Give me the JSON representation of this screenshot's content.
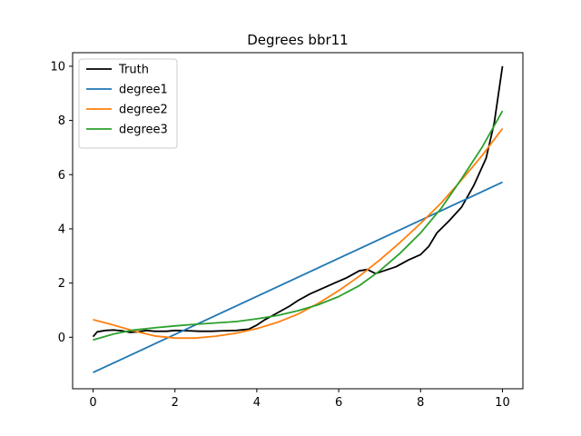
{
  "chart_data": {
    "type": "line",
    "title": "Degrees bbr11",
    "xlabel": "",
    "ylabel": "",
    "xlim": [
      -0.5,
      10.5
    ],
    "ylim": [
      -1.9,
      10.5
    ],
    "xticks": [
      0,
      2,
      4,
      6,
      8,
      10
    ],
    "yticks": [
      0,
      2,
      4,
      6,
      8,
      10
    ],
    "grid": false,
    "legend_position": "top-left",
    "series": [
      {
        "name": "Truth",
        "color": "#000000",
        "x": [
          0,
          0.1,
          0.3,
          0.5,
          0.7,
          0.9,
          1.1,
          1.3,
          1.5,
          1.8,
          2.0,
          2.3,
          2.6,
          2.9,
          3.2,
          3.5,
          3.8,
          4.0,
          4.2,
          4.5,
          4.8,
          5.0,
          5.3,
          5.6,
          5.9,
          6.2,
          6.5,
          6.7,
          6.9,
          7.1,
          7.4,
          7.7,
          8.0,
          8.2,
          8.4,
          8.7,
          9.0,
          9.3,
          9.6,
          9.8,
          10.0
        ],
        "y": [
          0.02,
          0.2,
          0.25,
          0.27,
          0.24,
          0.18,
          0.2,
          0.25,
          0.22,
          0.22,
          0.25,
          0.24,
          0.22,
          0.22,
          0.24,
          0.25,
          0.3,
          0.45,
          0.65,
          0.9,
          1.15,
          1.35,
          1.6,
          1.8,
          2.0,
          2.2,
          2.45,
          2.5,
          2.35,
          2.45,
          2.6,
          2.85,
          3.05,
          3.35,
          3.85,
          4.3,
          4.8,
          5.6,
          6.6,
          7.9,
          10.0
        ]
      },
      {
        "name": "degree1",
        "color": "#1f77b4",
        "x": [
          0,
          10
        ],
        "y": [
          -1.3,
          5.72
        ]
      },
      {
        "name": "degree2",
        "color": "#ff7f0e",
        "x": [
          0,
          0.5,
          1.0,
          1.5,
          2.0,
          2.5,
          3.0,
          3.5,
          4.0,
          4.5,
          5.0,
          5.5,
          6.0,
          6.5,
          7.0,
          7.5,
          8.0,
          8.5,
          9.0,
          9.5,
          10.0
        ],
        "y": [
          0.65,
          0.45,
          0.23,
          0.05,
          -0.03,
          -0.03,
          0.04,
          0.15,
          0.32,
          0.55,
          0.85,
          1.25,
          1.72,
          2.25,
          2.85,
          3.5,
          4.2,
          4.95,
          5.8,
          6.7,
          7.7
        ]
      },
      {
        "name": "degree3",
        "color": "#2ca02c",
        "x": [
          0,
          0.5,
          1.0,
          1.5,
          2.0,
          2.5,
          3.0,
          3.5,
          4.0,
          4.5,
          5.0,
          5.5,
          6.0,
          6.5,
          7.0,
          7.5,
          8.0,
          8.5,
          9.0,
          9.5,
          10.0
        ],
        "y": [
          -0.1,
          0.12,
          0.27,
          0.35,
          0.42,
          0.48,
          0.53,
          0.58,
          0.68,
          0.8,
          0.98,
          1.2,
          1.5,
          1.9,
          2.45,
          3.1,
          3.85,
          4.75,
          5.85,
          7.0,
          8.35
        ]
      }
    ]
  }
}
